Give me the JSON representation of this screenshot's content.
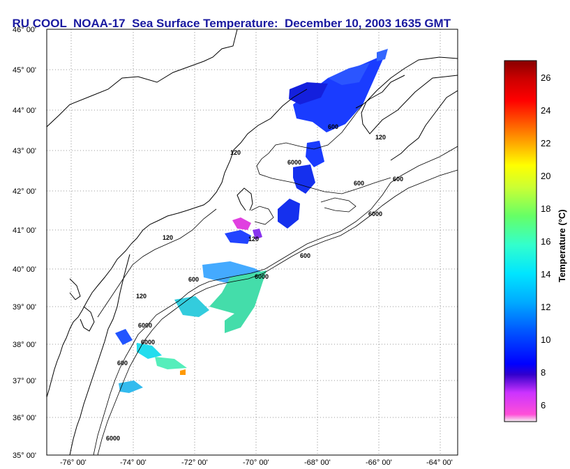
{
  "title": {
    "source": "RU COOL",
    "satellite": "NOAA-17",
    "product": "Sea Surface Temperature:",
    "datetime": "December 10, 2003 1635 GMT"
  },
  "map": {
    "lat_labels": [
      "46° 00'",
      "45° 00'",
      "44° 00'",
      "43° 00'",
      "42° 00'",
      "41° 00'",
      "40° 00'",
      "39° 00'",
      "38° 00'",
      "37° 00'",
      "36° 00'",
      "35° 00'"
    ],
    "lon_labels": [
      "-76° 00'",
      "-74° 00'",
      "-72° 00'",
      "-70° 00'",
      "-68° 00'",
      "-66° 00'",
      "-64° 00'"
    ],
    "isobath_labels": [
      "120",
      "600",
      "6000",
      "120",
      "600",
      "6000",
      "600",
      "6000",
      "120",
      "600",
      "120",
      "6000",
      "600",
      "6000",
      "120",
      "600",
      "6000"
    ],
    "land_color": "#ffffff",
    "grid": "dotted"
  },
  "colorbar": {
    "label": "Temperature (°C)",
    "min": 5,
    "max": 27,
    "ticks": [
      "26",
      "24",
      "22",
      "20",
      "18",
      "16",
      "14",
      "12",
      "10",
      "8",
      "6"
    ],
    "colors": [
      "#f2f2f2",
      "#ff4fd8",
      "#cc33ff",
      "#3300cc",
      "#0000ff",
      "#0055ff",
      "#00aaff",
      "#00e5ff",
      "#33ffcc",
      "#66ff66",
      "#ccff33",
      "#ffff00",
      "#ffaa00",
      "#ff5500",
      "#ff0000",
      "#cc0000",
      "#880000"
    ]
  }
}
